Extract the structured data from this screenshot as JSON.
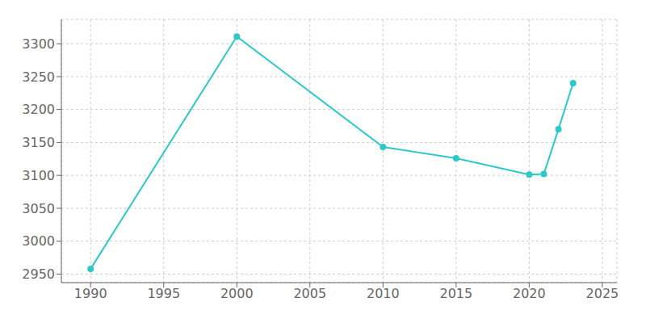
{
  "chart_data": {
    "type": "line",
    "x": [
      1990,
      2000,
      2010,
      2015,
      2020,
      2021,
      2022,
      2023
    ],
    "values": [
      2958,
      3311,
      3143,
      3126,
      3101,
      3102,
      3170,
      3240
    ],
    "color": "#2ec8c8",
    "marker": "circle",
    "xlim": [
      1988,
      2026
    ],
    "ylim": [
      2937,
      3337
    ],
    "xticks": [
      1990,
      1995,
      2000,
      2005,
      2010,
      2015,
      2020,
      2025
    ],
    "yticks": [
      2950,
      3000,
      3050,
      3100,
      3150,
      3200,
      3250,
      3300
    ],
    "grid": true
  }
}
